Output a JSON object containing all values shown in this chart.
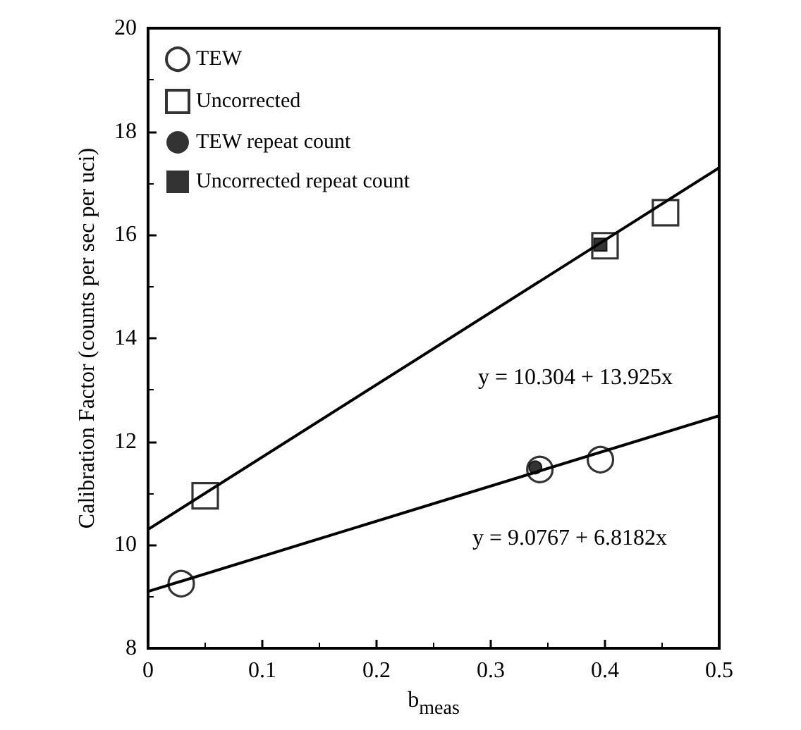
{
  "chart_data": {
    "type": "scatter",
    "xlabel": "b$_{meas}$",
    "ylabel": "Calibration Factor (counts per sec per uci)",
    "xlim": [
      0,
      0.5
    ],
    "xticks": [
      0,
      0.1,
      0.2,
      0.3,
      0.4,
      0.5
    ],
    "ylim": [
      8,
      20
    ],
    "yticks": [
      8,
      10,
      12,
      14,
      16,
      18,
      20
    ],
    "grid": false,
    "legend": "top left",
    "series": [
      {
        "name": "TEW",
        "color": "#000000",
        "marker": "circle",
        "x": [
          0.029,
          0.343,
          0.396
        ],
        "values": [
          9.25,
          11.46,
          11.65
        ]
      },
      {
        "name": "Uncorrected",
        "color": "#000000",
        "marker": "square",
        "x": [
          0.05,
          0.4,
          0.453
        ],
        "values": [
          10.95,
          15.79,
          16.43
        ]
      },
      {
        "name": "TEW repeat count",
        "color": "#000000",
        "marker": "circle",
        "x": [
          0.339
        ],
        "values": [
          11.5
        ]
      },
      {
        "name": "Uncorrected repeat count",
        "color": "#000000",
        "marker": "square",
        "x": [
          0.396
        ],
        "values": [
          15.81
        ]
      },
      {
        "type": "line",
        "color": "#000000",
        "x": [
          0,
          0.5
        ],
        "values": [
          10.3,
          17.3
        ]
      },
      {
        "type": "line",
        "color": "#000000",
        "x": [
          0,
          0.5
        ],
        "values": [
          9.1,
          12.5
        ]
      }
    ],
    "annotations": [
      "y = 10.304 + 13.925x",
      "y = 9.0767 + 6.8182x"
    ]
  }
}
